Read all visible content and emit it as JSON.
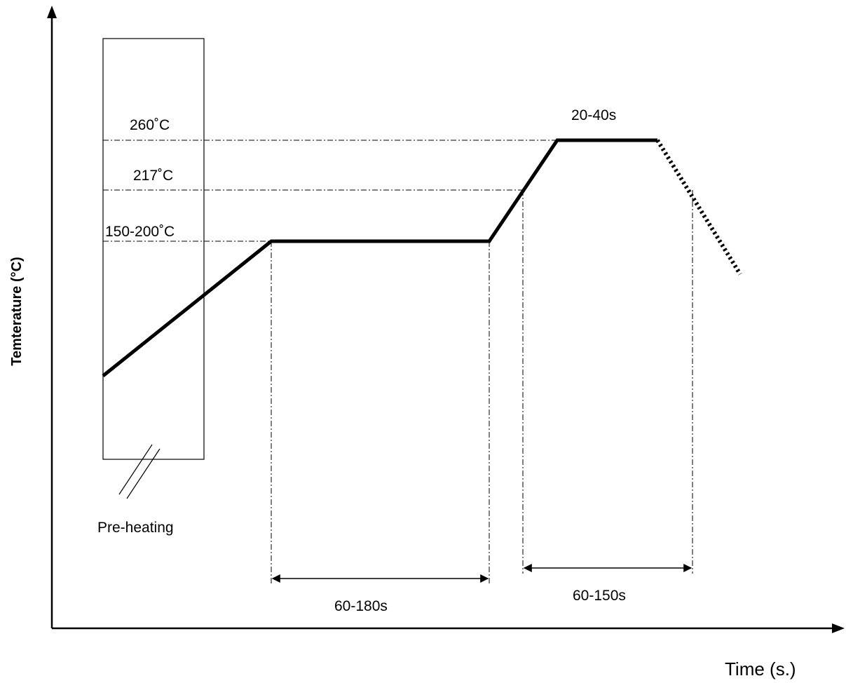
{
  "axes": {
    "x_label": "Time (s.)",
    "y_label": "Temterature (°C)"
  },
  "temperature_labels": {
    "t260": "260˚C",
    "t217": "217˚C",
    "t150_200": "150-200˚C"
  },
  "phase_labels": {
    "preheating": "Pre-heating",
    "soak_duration": "60-180s",
    "above_liquidus_duration": "60-150s",
    "peak_duration": "20-40s"
  },
  "colors": {
    "line": "#000000",
    "background": "#ffffff"
  }
}
